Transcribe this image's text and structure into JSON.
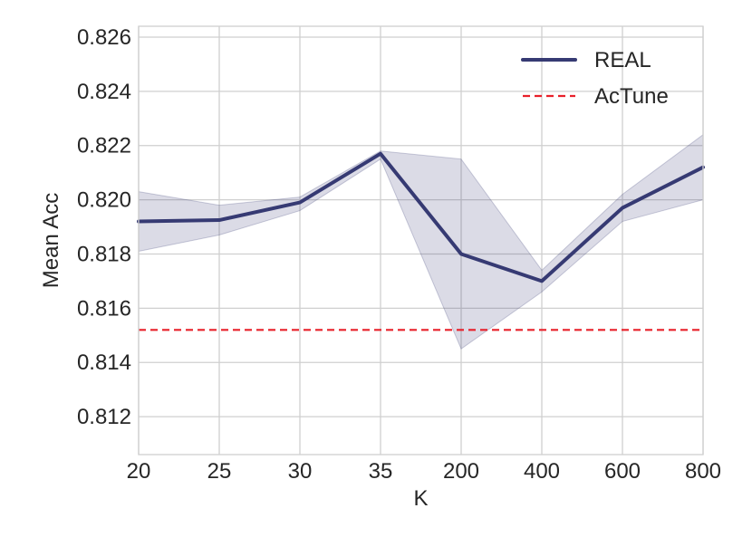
{
  "chart_data": {
    "type": "line",
    "title": "",
    "xlabel": "K",
    "ylabel": "Mean Acc",
    "categories": [
      "20",
      "25",
      "30",
      "35",
      "200",
      "400",
      "600",
      "800"
    ],
    "ylim": [
      0.8106,
      0.8264
    ],
    "yticks": [
      "0.812",
      "0.814",
      "0.816",
      "0.818",
      "0.820",
      "0.822",
      "0.824",
      "0.826"
    ],
    "ytick_values": [
      0.812,
      0.814,
      0.816,
      0.818,
      0.82,
      0.822,
      0.824,
      0.826
    ],
    "grid": true,
    "legend_position": "top-right",
    "series": [
      {
        "name": "REAL",
        "color": "#363a73",
        "style": "solid",
        "values": [
          0.8192,
          0.81925,
          0.8199,
          0.8217,
          0.818,
          0.817,
          0.8197,
          0.8212
        ],
        "band_lower": [
          0.8181,
          0.8187,
          0.8196,
          0.8215,
          0.8145,
          0.8166,
          0.8192,
          0.82
        ],
        "band_upper": [
          0.8203,
          0.8198,
          0.8201,
          0.8218,
          0.8215,
          0.8174,
          0.8202,
          0.8224
        ]
      },
      {
        "name": "AcTune",
        "color": "#e8202a",
        "style": "dashed",
        "constant": 0.8152
      }
    ]
  }
}
